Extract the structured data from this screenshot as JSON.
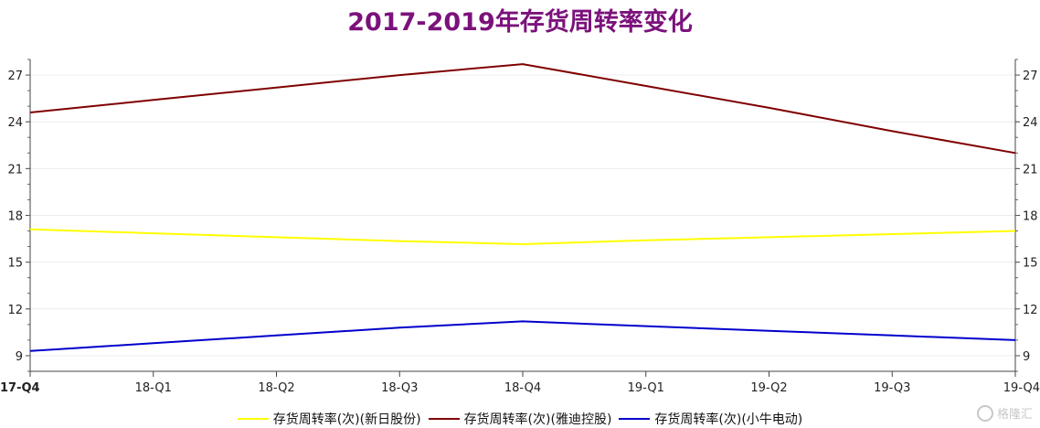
{
  "title": "2017-2019年存货周转率变化",
  "watermark": "格隆汇",
  "chart_data": {
    "type": "line",
    "categories": [
      "17-Q4",
      "18-Q1",
      "18-Q2",
      "18-Q3",
      "18-Q4",
      "19-Q1",
      "19-Q2",
      "19-Q3",
      "19-Q4"
    ],
    "ylim": [
      8,
      28
    ],
    "yticks": [
      9,
      12,
      15,
      18,
      21,
      24,
      27
    ],
    "grid": true,
    "secondary_axis": "right (mirrors left)",
    "legend_position": "bottom",
    "series": [
      {
        "name": "存货周转率(次)(新日股份)",
        "color": "#ffff00",
        "values": [
          17.1,
          16.85,
          16.6,
          16.35,
          16.15,
          16.4,
          16.6,
          16.8,
          17.0
        ]
      },
      {
        "name": "存货周转率(次)(雅迪控股)",
        "color": "#800000",
        "values": [
          24.6,
          25.4,
          26.2,
          27.0,
          27.7,
          26.3,
          24.9,
          23.4,
          22.0
        ]
      },
      {
        "name": "存货周转率(次)(小牛电动)",
        "color": "#0000cc",
        "values": [
          9.3,
          9.8,
          10.3,
          10.8,
          11.2,
          10.9,
          10.6,
          10.3,
          10.0
        ]
      }
    ]
  }
}
